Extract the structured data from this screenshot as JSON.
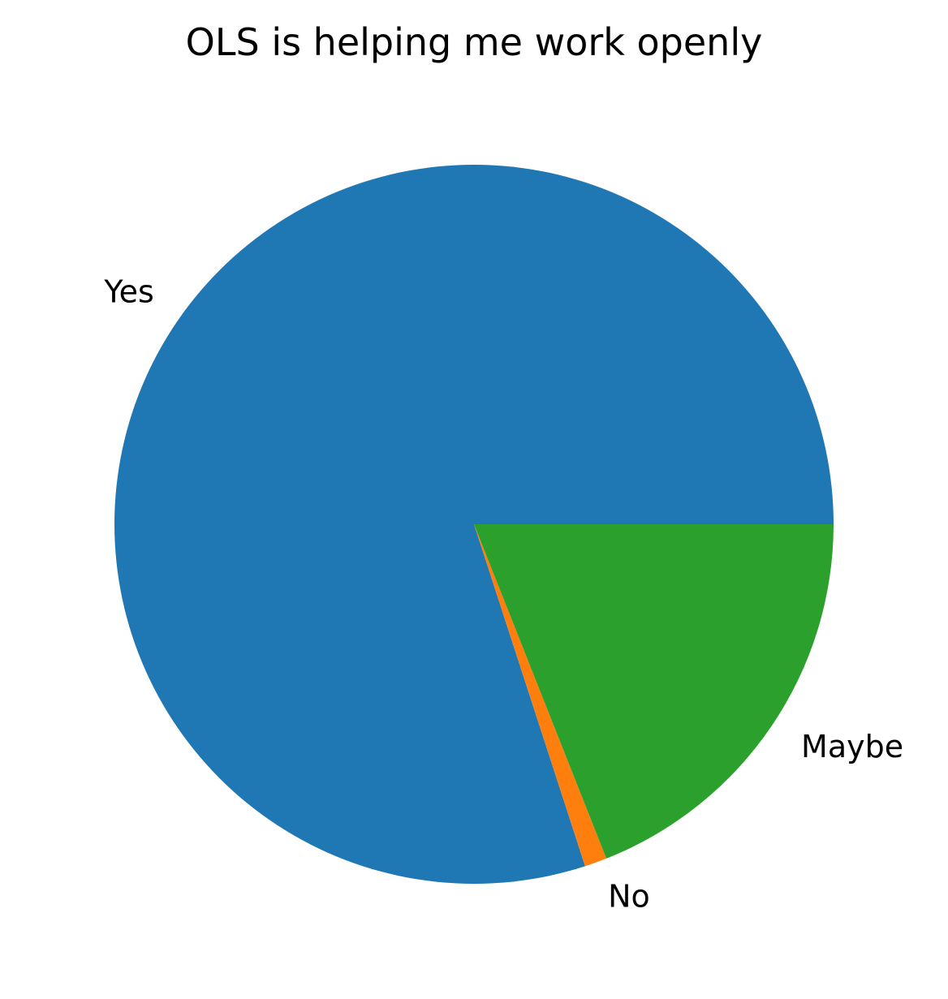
{
  "chart_data": {
    "type": "pie",
    "title": "OLS is helping me work openly",
    "categories": [
      "Yes",
      "No",
      "Maybe"
    ],
    "values": [
      80,
      1,
      19
    ],
    "colors": [
      "#1f77b4",
      "#ff7f0e",
      "#2ca02c"
    ],
    "start_angle_deg": 0,
    "direction": "counterclockwise",
    "legend": "none"
  }
}
